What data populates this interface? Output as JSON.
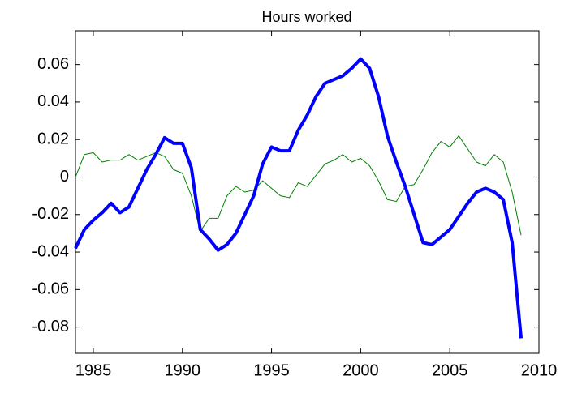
{
  "chart_data": {
    "type": "line",
    "title": "Hours worked",
    "x": [
      1984,
      1984.5,
      1985,
      1985.5,
      1986,
      1986.5,
      1987,
      1987.5,
      1988,
      1988.5,
      1989,
      1989.5,
      1990,
      1990.5,
      1991,
      1991.5,
      1992,
      1992.5,
      1993,
      1993.5,
      1994,
      1994.5,
      1995,
      1995.5,
      1996,
      1996.5,
      1997,
      1997.5,
      1998,
      1998.5,
      1999,
      1999.5,
      2000,
      2000.5,
      2001,
      2001.5,
      2002,
      2002.5,
      2003,
      2003.5,
      2004,
      2004.5,
      2005,
      2005.5,
      2006,
      2006.5,
      2007,
      2007.5,
      2008,
      2008.5,
      2009
    ],
    "series": [
      {
        "color": "#0000ff",
        "width": 4,
        "values": [
          -0.038,
          -0.028,
          -0.023,
          -0.019,
          -0.014,
          -0.019,
          -0.016,
          -0.006,
          0.004,
          0.012,
          0.021,
          0.018,
          0.018,
          0.005,
          -0.028,
          -0.033,
          -0.039,
          -0.036,
          -0.03,
          -0.02,
          -0.01,
          0.007,
          0.016,
          0.014,
          0.014,
          0.025,
          0.033,
          0.043,
          0.05,
          0.052,
          0.054,
          0.058,
          0.063,
          0.058,
          0.043,
          0.022,
          0.008,
          -0.005,
          -0.02,
          -0.035,
          -0.036,
          -0.032,
          -0.028,
          -0.021,
          -0.014,
          -0.008,
          -0.006,
          -0.008,
          -0.012,
          -0.035,
          -0.086
        ]
      },
      {
        "color": "#008000",
        "width": 1,
        "values": [
          0.0,
          0.012,
          0.013,
          0.008,
          0.009,
          0.009,
          0.012,
          0.009,
          0.011,
          0.013,
          0.011,
          0.004,
          0.002,
          -0.01,
          -0.029,
          -0.022,
          -0.022,
          -0.01,
          -0.005,
          -0.008,
          -0.007,
          -0.002,
          -0.006,
          -0.01,
          -0.011,
          -0.003,
          -0.005,
          0.001,
          0.007,
          0.009,
          0.012,
          0.008,
          0.01,
          0.006,
          -0.002,
          -0.012,
          -0.013,
          -0.005,
          -0.004,
          0.004,
          0.013,
          0.019,
          0.016,
          0.022,
          0.015,
          0.008,
          0.006,
          0.012,
          0.008,
          -0.008,
          -0.031
        ]
      }
    ],
    "xlim": [
      1984,
      2010
    ],
    "xticks": [
      1985,
      1990,
      1995,
      2000,
      2005,
      2010
    ],
    "ylim": [
      -0.094,
      0.078
    ],
    "yticks": [
      -0.08,
      -0.06,
      -0.04,
      -0.02,
      0,
      0.02,
      0.04,
      0.06
    ],
    "grid": false
  }
}
